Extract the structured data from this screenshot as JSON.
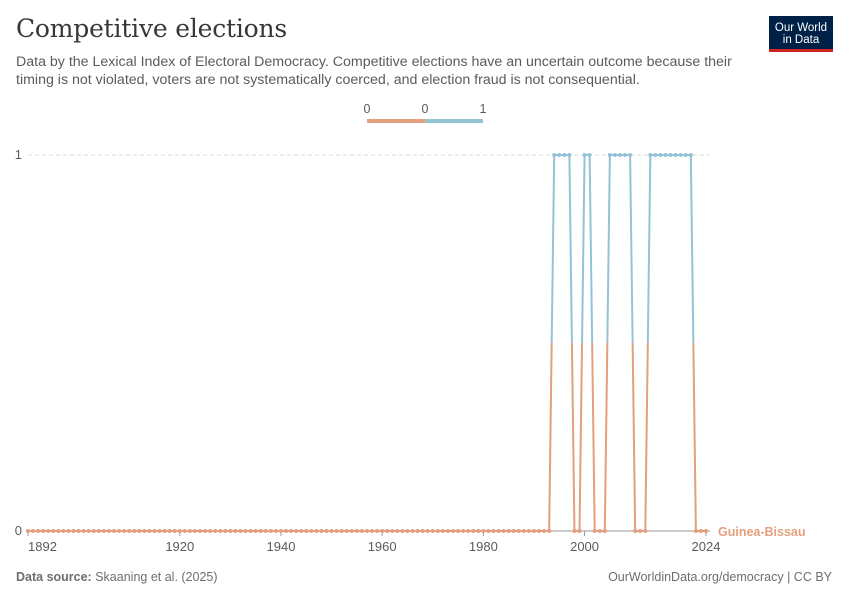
{
  "header": {
    "title": "Competitive elections",
    "subtitle": "Data by the Lexical Index of Electoral Democracy. Competitive elections have an uncertain outcome because their timing is not violated, voters are not systematically coerced, and election fraud is not consequential.",
    "logo_line1": "Our World",
    "logo_line2": "in Data"
  },
  "footer": {
    "source_label": "Data source:",
    "source_text": "Skaaning et al. (2025)",
    "attribution": "OurWorldinData.org/democracy | CC BY"
  },
  "colors": {
    "low": "#e39f7e",
    "high": "#95c3d6",
    "grid": "#dddddd",
    "axis": "#999999"
  },
  "chart_data": {
    "type": "line",
    "title": "Competitive elections",
    "xlabel": "",
    "ylabel": "",
    "xlim": [
      1890,
      2024
    ],
    "ylim": [
      0,
      1
    ],
    "x_ticks": [
      "1892",
      "1920",
      "1940",
      "1960",
      "1980",
      "2000",
      "2024"
    ],
    "y_ticks": [
      "0",
      "1"
    ],
    "legend": {
      "placement": "top-center",
      "labels": [
        "0",
        "0",
        "1"
      ],
      "colors": [
        "#e39f7e",
        "#95c3d6"
      ]
    },
    "series": [
      {
        "name": "Guinea-Bissau",
        "color_scale": {
          "0": "#e39f7e",
          "1": "#95c3d6"
        },
        "x_start": 1890,
        "x_end": 2024,
        "default_value": 0,
        "ones": [
          1994,
          1995,
          1996,
          1997,
          2000,
          2001,
          2005,
          2006,
          2007,
          2008,
          2009,
          2013,
          2014,
          2015,
          2016,
          2017,
          2018,
          2019,
          2020,
          2021
        ]
      }
    ]
  }
}
